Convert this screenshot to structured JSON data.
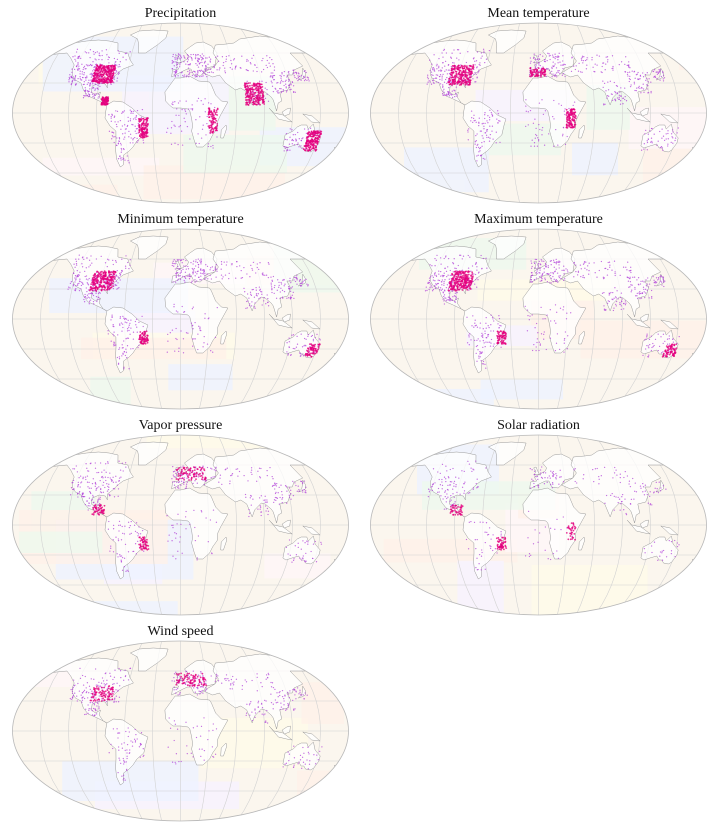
{
  "colors": {
    "station": "#b040d8",
    "dense": "#e3007e",
    "land_fill": "#ffffff",
    "land_stroke": "#9a9a9a",
    "graticule": "#d2d2d2",
    "ocean_tint": "#fbf6ee"
  },
  "panels": [
    {
      "id": "precipitation",
      "title": "Precipitation"
    },
    {
      "id": "mean-temperature",
      "title": "Mean temperature"
    },
    {
      "id": "minimum-temperature",
      "title": "Minimum temperature"
    },
    {
      "id": "maximum-temperature",
      "title": "Maximum temperature"
    },
    {
      "id": "vapor-pressure",
      "title": "Vapor pressure"
    },
    {
      "id": "solar-radiation",
      "title": "Solar radiation"
    },
    {
      "id": "wind-speed",
      "title": "Wind speed"
    }
  ]
}
